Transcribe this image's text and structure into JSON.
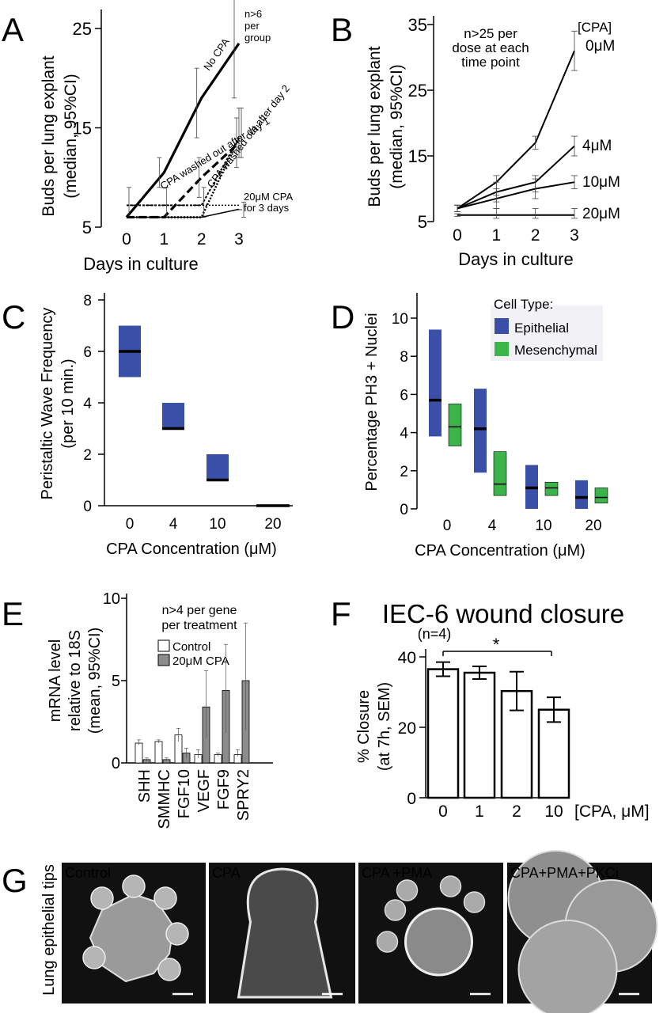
{
  "panels": {
    "A": {
      "label": "A",
      "ylabel": "Buds per lung explant\n(median, 95%CI)",
      "xlabel": "Days in culture",
      "yticks": [
        "5",
        "15",
        "25"
      ],
      "xticks": [
        "0",
        "1",
        "2",
        "3"
      ],
      "note": "n>6\nper\ngroup",
      "annotations": {
        "no_cpa": "No CPA",
        "day1": "CPA washed out after day 1",
        "day2": "CPA washed out after day 2",
        "cpa3": "20μM CPA\nfor 3 days"
      }
    },
    "B": {
      "label": "B",
      "ylabel": "Buds per lung explant\n(median, 95%CI)",
      "xlabel": "Days in culture",
      "yticks": [
        "5",
        "15",
        "25",
        "35"
      ],
      "xticks": [
        "0",
        "1",
        "2",
        "3"
      ],
      "note": "n>25 per\ndose at each\ntime point",
      "legend_title": "[CPA]",
      "series_labels": [
        "0μM",
        "4μM",
        "10μM",
        "20μM"
      ]
    },
    "C": {
      "label": "C",
      "ylabel": "Peristaltic Wave Frequency\n(per 10 min.)",
      "xlabel": "CPA Concentration (μM)",
      "yticks": [
        "0",
        "2",
        "4",
        "6",
        "8"
      ],
      "xticks": [
        "0",
        "4",
        "10",
        "20"
      ]
    },
    "D": {
      "label": "D",
      "ylabel": "Percentage PH3 + Nuclei",
      "xlabel": "CPA Concentration (μM)",
      "yticks": [
        "0",
        "2",
        "4",
        "6",
        "8",
        "10"
      ],
      "xticks": [
        "0",
        "4",
        "10",
        "20"
      ],
      "legend_title": "Cell Type:",
      "legend": [
        "Epithelial",
        "Mesenchymal"
      ]
    },
    "E": {
      "label": "E",
      "ylabel": "mRNA level\nrelative to 18S\n(mean, 95%CI)",
      "yticks": [
        "0",
        "5",
        "10"
      ],
      "note": "n>4 per gene\nper treatment",
      "legend": [
        "Control",
        "20μM CPA"
      ],
      "genes": [
        "SHH",
        "SMMHC",
        "FGF10",
        "VEGF",
        "FGF9",
        "SPRY2"
      ]
    },
    "F": {
      "label": "F",
      "title": "IEC-6 wound closure",
      "subtitle": "(n=4)",
      "ylabel": "% Closure\n(at 7h, SEM)",
      "yticks": [
        "0",
        "20",
        "40"
      ],
      "xticks": [
        "0",
        "1",
        "2",
        "10"
      ],
      "xlabel_inline": "[CPA, μM]",
      "significance": "*"
    },
    "G": {
      "label": "G",
      "side_label": "Lung epithelial tips",
      "images": [
        "Control",
        "CPA",
        "CPA +PMA",
        "CPA+PMA+PKCi"
      ]
    }
  },
  "colors": {
    "epithelial": "#3a4fa8",
    "mesenchymal": "#3cb44a",
    "cpa_bar": "#8c8c8c",
    "control_bar": "#ffffff"
  },
  "chart_data": [
    {
      "panel": "A",
      "type": "line",
      "x": [
        0,
        1,
        2,
        3
      ],
      "ylim": [
        5,
        27
      ],
      "series": [
        {
          "values": [
            6,
            10.5,
            18,
            23.5
          ],
          "ci_low": [
            6,
            9,
            14,
            18
          ],
          "ci_high": [
            6,
            12,
            21,
            28
          ]
        },
        {
          "values": [
            6,
            6,
            10,
            13.5
          ],
          "ci_low": [
            6,
            6,
            8,
            11
          ],
          "ci_high": [
            6,
            6,
            12,
            16
          ]
        },
        {
          "values": [
            6,
            6,
            6,
            14
          ],
          "ci_low": [
            6,
            6,
            6,
            12
          ],
          "ci_high": [
            6,
            6,
            6,
            17
          ]
        },
        {
          "values": [
            7.2,
            7.2,
            7.2,
            14
          ],
          "ci_low": [
            6,
            6,
            6,
            12
          ],
          "ci_high": [
            9,
            9,
            9,
            17
          ]
        },
        {
          "values": [
            6,
            6,
            6,
            6.8
          ],
          "ci_low": [
            6,
            6,
            6,
            6
          ],
          "ci_high": [
            6,
            6,
            6,
            7.5
          ]
        }
      ]
    },
    {
      "panel": "B",
      "type": "line",
      "x": [
        0,
        1,
        2,
        3
      ],
      "ylim": [
        5,
        35
      ],
      "series": [
        {
          "name": "0μM",
          "values": [
            7,
            11,
            17,
            31
          ],
          "ci_low": [
            6.5,
            9,
            16,
            28
          ],
          "ci_high": [
            7.5,
            12,
            18,
            34
          ]
        },
        {
          "name": "4μM",
          "values": [
            7,
            9.5,
            11,
            16.5
          ],
          "ci_low": [
            6.5,
            8,
            9.5,
            15
          ],
          "ci_high": [
            7.5,
            11,
            12,
            18
          ]
        },
        {
          "name": "10μM",
          "values": [
            7,
            8.5,
            10,
            11
          ],
          "ci_low": [
            6.5,
            7,
            8.5,
            10
          ],
          "ci_high": [
            7.5,
            10,
            11.5,
            12
          ]
        },
        {
          "name": "20μM",
          "values": [
            6,
            6,
            6,
            6
          ],
          "ci_low": [
            5.8,
            5.5,
            5.5,
            5.5
          ],
          "ci_high": [
            6.2,
            7,
            7,
            7
          ]
        }
      ]
    },
    {
      "panel": "C",
      "type": "box",
      "categories": [
        "0",
        "4",
        "10",
        "20"
      ],
      "ylim": [
        0,
        8
      ],
      "boxes": [
        {
          "low": 5,
          "high": 7,
          "median": 6
        },
        {
          "low": 3,
          "high": 4,
          "median": 3
        },
        {
          "low": 1,
          "high": 2,
          "median": 1
        },
        {
          "low": 0,
          "high": 0.05,
          "median": 0
        }
      ]
    },
    {
      "panel": "D",
      "type": "box",
      "categories": [
        "0",
        "4",
        "10",
        "20"
      ],
      "ylim": [
        0,
        11
      ],
      "series": [
        {
          "name": "Epithelial",
          "boxes": [
            {
              "low": 3.8,
              "high": 9.4,
              "median": 5.7
            },
            {
              "low": 1.9,
              "high": 6.3,
              "median": 4.2
            },
            {
              "low": 0,
              "high": 2.3,
              "median": 1.1
            },
            {
              "low": 0,
              "high": 1.5,
              "median": 0.6
            }
          ]
        },
        {
          "name": "Mesenchymal",
          "boxes": [
            {
              "low": 3.3,
              "high": 5.5,
              "median": 4.3
            },
            {
              "low": 0.7,
              "high": 3,
              "median": 1.3
            },
            {
              "low": 0.7,
              "high": 1.4,
              "median": 1.1
            },
            {
              "low": 0.3,
              "high": 1.1,
              "median": 0.6
            }
          ]
        }
      ]
    },
    {
      "panel": "E",
      "type": "bar",
      "categories": [
        "SHH",
        "SMMHC",
        "FGF10",
        "VEGF",
        "FGF9",
        "SPRY2"
      ],
      "ylim": [
        0,
        10
      ],
      "series": [
        {
          "name": "Control",
          "values": [
            1.2,
            1.3,
            1.7,
            0.5,
            0.5,
            0.5
          ],
          "err_low": [
            1.1,
            1.2,
            1.3,
            0.3,
            0.4,
            0.4
          ],
          "err_high": [
            1.4,
            1.4,
            2.1,
            0.8,
            0.6,
            0.8
          ]
        },
        {
          "name": "20μM CPA",
          "values": [
            0.2,
            0.2,
            0.6,
            3.4,
            4.4,
            5.0
          ],
          "err_low": [
            0.1,
            0.1,
            0.3,
            1.5,
            1.8,
            2.0
          ],
          "err_high": [
            0.3,
            0.3,
            0.9,
            5.6,
            7.2,
            8.5
          ]
        }
      ]
    },
    {
      "panel": "F",
      "type": "bar",
      "categories": [
        "0",
        "1",
        "2",
        "10"
      ],
      "ylim": [
        0,
        42
      ],
      "values": [
        36.5,
        35.5,
        30.3,
        25
      ],
      "err_low": [
        34.5,
        33.7,
        24.8,
        21.5
      ],
      "err_high": [
        38.5,
        37.3,
        35.8,
        28.5
      ]
    }
  ]
}
